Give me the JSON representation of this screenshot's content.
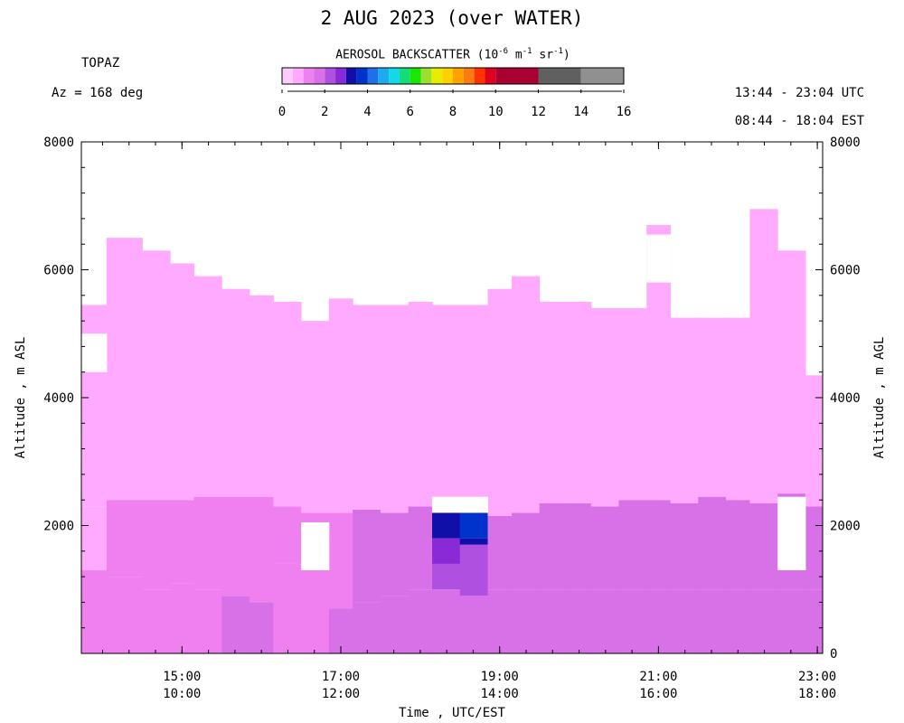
{
  "header": {
    "title": "2 AUG 2023 (over WATER)",
    "station": "TOPAZ",
    "azimuth": "Az = 168 deg",
    "utc_range": "13:44 - 23:04 UTC",
    "est_range": "08:44 - 18:04 EST"
  },
  "colorbar": {
    "title_prefix": "AEROSOL BACKSCATTER (10",
    "exp1": "-6",
    "mid1": " m",
    "exp2": "-1",
    "mid2": " sr",
    "exp3": "-1",
    "title_suffix": ")",
    "ticks": [
      "0",
      "2",
      "4",
      "6",
      "8",
      "10",
      "12",
      "14",
      "16"
    ],
    "bins": [
      0,
      0.5,
      1,
      1.5,
      2,
      2.5,
      3,
      3.5,
      4,
      4.5,
      5,
      5.5,
      6,
      6.5,
      7,
      7.5,
      8,
      8.5,
      9,
      9.5,
      10,
      12,
      14,
      16
    ],
    "colors": [
      "#ffccff",
      "#ffaaff",
      "#f080f0",
      "#d870e8",
      "#b050e0",
      "#8a2ad6",
      "#1010a8",
      "#0033cc",
      "#1f6fe8",
      "#1eaaf0",
      "#12d8e8",
      "#14dc78",
      "#18e800",
      "#99e030",
      "#e6ec00",
      "#ffd000",
      "#ffa200",
      "#ff7a10",
      "#ff3300",
      "#e00020",
      "#a80030",
      "#606060",
      "#909090",
      "#c0c0c0"
    ]
  },
  "chart_data": {
    "type": "heatmap",
    "title": "2 AUG 2023 (over WATER)",
    "xlabel": "Time , UTC/EST",
    "ylabel_left": "Altitude , m ASL",
    "ylabel_right": "Altitude , m AGL",
    "x_range_utc_hours": [
      13.733,
      23.067
    ],
    "x_ticks_utc": [
      "15:00",
      "17:00",
      "19:00",
      "21:00",
      "23:00"
    ],
    "x_ticks_est": [
      "10:00",
      "12:00",
      "14:00",
      "16:00",
      "18:00"
    ],
    "y_ticks_left": [
      "8000",
      "6000",
      "4000",
      "2000"
    ],
    "y_ticks_right": [
      "8000",
      "6000",
      "4000",
      "2000",
      "0"
    ],
    "ylim": [
      0,
      8000
    ],
    "units": "10^-6 m^-1 sr^-1",
    "profiles": [
      {
        "utc_hours": 13.8,
        "top_m": 5450,
        "layers": [
          {
            "bottom": 0,
            "top": 1300,
            "value": 1.2
          },
          {
            "bottom": 1300,
            "top": 2300,
            "value": 0.8
          },
          {
            "bottom": 2300,
            "top": 5450,
            "value": 0.7
          }
        ]
      },
      {
        "utc_hours": 14.3,
        "top_m": 6500,
        "layers": [
          {
            "bottom": 0,
            "top": 1200,
            "value": 1.3
          },
          {
            "bottom": 1200,
            "top": 2400,
            "value": 1.0
          },
          {
            "bottom": 2400,
            "top": 6500,
            "value": 0.8
          }
        ]
      },
      {
        "utc_hours": 14.7,
        "top_m": 6300,
        "layers": [
          {
            "bottom": 0,
            "top": 1000,
            "value": 1.3
          },
          {
            "bottom": 1000,
            "top": 2400,
            "value": 1.1
          },
          {
            "bottom": 2400,
            "top": 6300,
            "value": 0.8
          }
        ]
      },
      {
        "utc_hours": 15.0,
        "top_m": 6100,
        "layers": [
          {
            "bottom": 0,
            "top": 1100,
            "value": 1.4
          },
          {
            "bottom": 1100,
            "top": 2400,
            "value": 1.1
          },
          {
            "bottom": 2400,
            "top": 6100,
            "value": 0.9
          }
        ]
      },
      {
        "utc_hours": 15.3,
        "top_m": 5900,
        "layers": [
          {
            "bottom": 0,
            "top": 1000,
            "value": 1.4
          },
          {
            "bottom": 1000,
            "top": 2450,
            "value": 1.1
          },
          {
            "bottom": 2450,
            "top": 5900,
            "value": 0.8
          }
        ]
      },
      {
        "utc_hours": 15.7,
        "top_m": 5700,
        "layers": [
          {
            "bottom": 0,
            "top": 900,
            "value": 1.5
          },
          {
            "bottom": 900,
            "top": 2450,
            "value": 1.2
          },
          {
            "bottom": 2450,
            "top": 5700,
            "value": 0.8
          }
        ]
      },
      {
        "utc_hours": 16.0,
        "top_m": 5600,
        "layers": [
          {
            "bottom": 0,
            "top": 800,
            "value": 1.5
          },
          {
            "bottom": 800,
            "top": 2450,
            "value": 1.2
          },
          {
            "bottom": 2450,
            "top": 5600,
            "value": 0.9
          }
        ]
      },
      {
        "utc_hours": 16.3,
        "top_m": 5500,
        "layers": [
          {
            "bottom": 0,
            "top": 1400,
            "value": 1.3
          },
          {
            "bottom": 1400,
            "top": 2300,
            "value": 1.2
          },
          {
            "bottom": 2300,
            "top": 5500,
            "value": 0.8
          }
        ]
      },
      {
        "utc_hours": 16.7,
        "top_m": 5200,
        "layers": [
          {
            "bottom": 0,
            "top": 1300,
            "value": 1.4
          },
          {
            "bottom": 1300,
            "top": 2200,
            "value": 1.3
          },
          {
            "bottom": 2200,
            "top": 5200,
            "value": 0.8
          }
        ]
      },
      {
        "utc_hours": 17.0,
        "top_m": 5550,
        "layers": [
          {
            "bottom": 0,
            "top": 700,
            "value": 1.6
          },
          {
            "bottom": 700,
            "top": 2200,
            "value": 1.3
          },
          {
            "bottom": 2200,
            "top": 5550,
            "value": 0.8
          }
        ]
      },
      {
        "utc_hours": 17.3,
        "top_m": 5450,
        "layers": [
          {
            "bottom": 0,
            "top": 800,
            "value": 1.8
          },
          {
            "bottom": 800,
            "top": 2250,
            "value": 1.7
          },
          {
            "bottom": 2250,
            "top": 5450,
            "value": 0.8
          }
        ]
      },
      {
        "utc_hours": 17.7,
        "top_m": 5450,
        "layers": [
          {
            "bottom": 0,
            "top": 900,
            "value": 1.8
          },
          {
            "bottom": 900,
            "top": 2200,
            "value": 1.7
          },
          {
            "bottom": 2200,
            "top": 5450,
            "value": 0.9
          }
        ]
      },
      {
        "utc_hours": 18.0,
        "top_m": 5500,
        "layers": [
          {
            "bottom": 0,
            "top": 1000,
            "value": 1.8
          },
          {
            "bottom": 1000,
            "top": 2300,
            "value": 1.8
          },
          {
            "bottom": 2300,
            "top": 5500,
            "value": 0.9
          }
        ]
      },
      {
        "utc_hours": 18.3,
        "top_m": 5450,
        "layers": [
          {
            "bottom": 0,
            "top": 1000,
            "value": 1.9
          },
          {
            "bottom": 1000,
            "top": 1400,
            "value": 2.0
          },
          {
            "bottom": 1400,
            "top": 1800,
            "value": 2.8
          },
          {
            "bottom": 1800,
            "top": 2200,
            "value": 3.1
          },
          {
            "bottom": 2200,
            "top": 5450,
            "value": 0.9
          }
        ]
      },
      {
        "utc_hours": 18.7,
        "top_m": 5450,
        "layers": [
          {
            "bottom": 0,
            "top": 900,
            "value": 1.9
          },
          {
            "bottom": 900,
            "top": 1700,
            "value": 2.0
          },
          {
            "bottom": 1700,
            "top": 1800,
            "value": 3.1
          },
          {
            "bottom": 1800,
            "top": 2200,
            "value": 3.7
          },
          {
            "bottom": 2200,
            "top": 5450,
            "value": 0.9
          }
        ]
      },
      {
        "utc_hours": 19.0,
        "top_m": 5700,
        "layers": [
          {
            "bottom": 0,
            "top": 1000,
            "value": 1.8
          },
          {
            "bottom": 1000,
            "top": 2150,
            "value": 1.7
          },
          {
            "bottom": 2150,
            "top": 5700,
            "value": 0.8
          }
        ]
      },
      {
        "utc_hours": 19.3,
        "top_m": 5900,
        "layers": [
          {
            "bottom": 0,
            "top": 1000,
            "value": 1.8
          },
          {
            "bottom": 1000,
            "top": 2200,
            "value": 1.7
          },
          {
            "bottom": 2200,
            "top": 5900,
            "value": 0.8
          }
        ]
      },
      {
        "utc_hours": 19.7,
        "top_m": 5500,
        "layers": [
          {
            "bottom": 0,
            "top": 1000,
            "value": 1.8
          },
          {
            "bottom": 1000,
            "top": 2350,
            "value": 1.8
          },
          {
            "bottom": 2350,
            "top": 5500,
            "value": 0.8
          }
        ]
      },
      {
        "utc_hours": 20.0,
        "top_m": 5500,
        "layers": [
          {
            "bottom": 0,
            "top": 1000,
            "value": 1.8
          },
          {
            "bottom": 1000,
            "top": 2350,
            "value": 1.8
          },
          {
            "bottom": 2350,
            "top": 5500,
            "value": 0.9
          }
        ]
      },
      {
        "utc_hours": 20.3,
        "top_m": 5400,
        "layers": [
          {
            "bottom": 0,
            "top": 1000,
            "value": 1.8
          },
          {
            "bottom": 1000,
            "top": 2300,
            "value": 1.8
          },
          {
            "bottom": 2300,
            "top": 5400,
            "value": 0.9
          }
        ]
      },
      {
        "utc_hours": 20.7,
        "top_m": 5400,
        "layers": [
          {
            "bottom": 0,
            "top": 1000,
            "value": 1.8
          },
          {
            "bottom": 1000,
            "top": 2400,
            "value": 1.8
          },
          {
            "bottom": 2400,
            "top": 5400,
            "value": 0.9
          }
        ]
      },
      {
        "utc_hours": 21.0,
        "top_m": 6700,
        "layers": [
          {
            "bottom": 0,
            "top": 1000,
            "value": 1.8
          },
          {
            "bottom": 1000,
            "top": 2400,
            "value": 1.7
          },
          {
            "bottom": 2400,
            "top": 6700,
            "value": 0.9
          }
        ]
      },
      {
        "utc_hours": 21.3,
        "top_m": 5250,
        "layers": [
          {
            "bottom": 0,
            "top": 1000,
            "value": 1.8
          },
          {
            "bottom": 1000,
            "top": 2350,
            "value": 1.7
          },
          {
            "bottom": 2350,
            "top": 5250,
            "value": 0.8
          }
        ]
      },
      {
        "utc_hours": 21.7,
        "top_m": 5250,
        "layers": [
          {
            "bottom": 0,
            "top": 1000,
            "value": 1.8
          },
          {
            "bottom": 1000,
            "top": 2450,
            "value": 1.8
          },
          {
            "bottom": 2450,
            "top": 5250,
            "value": 0.9
          }
        ]
      },
      {
        "utc_hours": 22.0,
        "top_m": 5250,
        "layers": [
          {
            "bottom": 0,
            "top": 1000,
            "value": 1.8
          },
          {
            "bottom": 1000,
            "top": 2400,
            "value": 1.8
          },
          {
            "bottom": 2400,
            "top": 5250,
            "value": 0.9
          }
        ]
      },
      {
        "utc_hours": 22.3,
        "top_m": 6950,
        "layers": [
          {
            "bottom": 0,
            "top": 1000,
            "value": 1.8
          },
          {
            "bottom": 1000,
            "top": 2350,
            "value": 1.8
          },
          {
            "bottom": 2350,
            "top": 6950,
            "value": 0.9
          }
        ]
      },
      {
        "utc_hours": 22.7,
        "top_m": 6300,
        "layers": [
          {
            "bottom": 0,
            "top": 1000,
            "value": 1.8
          },
          {
            "bottom": 1000,
            "top": 2500,
            "value": 1.7
          },
          {
            "bottom": 2500,
            "top": 6300,
            "value": 0.9
          }
        ]
      },
      {
        "utc_hours": 23.0,
        "top_m": 4350,
        "layers": [
          {
            "bottom": 0,
            "top": 1000,
            "value": 1.8
          },
          {
            "bottom": 1000,
            "top": 2300,
            "value": 1.9
          },
          {
            "bottom": 2300,
            "top": 4350,
            "value": 0.9
          }
        ]
      }
    ],
    "gaps": [
      {
        "utc_hours": 16.6,
        "bottom_m": 1300,
        "top_m": 2050
      },
      {
        "utc_hours": 22.6,
        "bottom_m": 1300,
        "top_m": 2450
      },
      {
        "utc_hours": 18.3,
        "bottom_m": 2200,
        "top_m": 2450
      },
      {
        "utc_hours": 18.7,
        "bottom_m": 2200,
        "top_m": 2450
      },
      {
        "utc_hours": 13.8,
        "bottom_m": 4400,
        "top_m": 5000
      },
      {
        "utc_hours": 21.0,
        "bottom_m": 5800,
        "top_m": 6550
      }
    ]
  }
}
